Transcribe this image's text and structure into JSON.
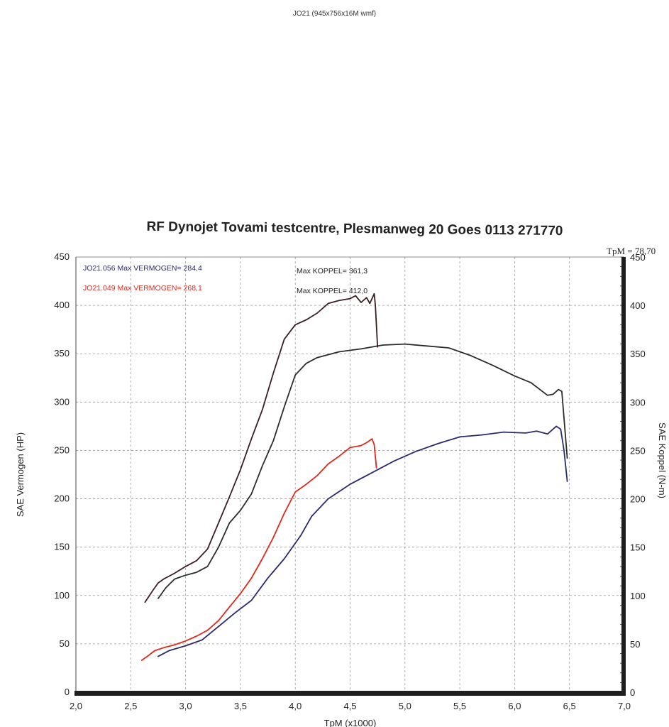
{
  "header_note": "JO21 (945x756x16M wmf)",
  "tpm_note": "TpM = 78,70",
  "colors": {
    "run_056": "#2b2a6e",
    "run_049": "#e0281c",
    "koppel_dark": "#3a1f22",
    "koppel_grey": "#2c2c2c",
    "grid": "#9a9a9a"
  },
  "chart_data": {
    "type": "line",
    "title": "RF Dynojet Tovami testcentre, Plesmanweg 20 Goes 0113 271770",
    "xlabel": "TpM (x1000)",
    "ylabel_left": "SAE Vermogen (HP)",
    "ylabel_right": "SAE Koppel (N-m)",
    "xlim": [
      2.0,
      7.0
    ],
    "ylim_left": [
      0,
      450
    ],
    "ylim_right": [
      0,
      450
    ],
    "x_ticks": [
      "2,0",
      "2,5",
      "3,0",
      "3,5",
      "4,0",
      "4,5",
      "5,0",
      "5,5",
      "6,0",
      "6,5",
      "7,0"
    ],
    "y_ticks_left": [
      "0",
      "50",
      "100",
      "150",
      "200",
      "250",
      "300",
      "350",
      "400",
      "450"
    ],
    "y_ticks_right": [
      "0",
      "50",
      "100",
      "150",
      "200",
      "250",
      "300",
      "350",
      "400",
      "450"
    ],
    "grid": true,
    "legend": [
      {
        "text": "JO21.056  Max VERMOGEN= 284,4",
        "color": "#2b2a6e"
      },
      {
        "text": "JO21.049  Max VERMOGEN= 268,1",
        "color": "#e0281c"
      },
      {
        "text": "Max KOPPEL= 361,3",
        "color": "#222222"
      },
      {
        "text": "Max KOPPEL= 412,0",
        "color": "#222222"
      }
    ],
    "series": [
      {
        "key": "vermogen_056",
        "axis": "left",
        "color": "#2b2a6e",
        "points": [
          [
            2.75,
            37
          ],
          [
            2.85,
            43
          ],
          [
            3.0,
            48
          ],
          [
            3.15,
            54
          ],
          [
            3.3,
            68
          ],
          [
            3.45,
            82
          ],
          [
            3.6,
            95
          ],
          [
            3.75,
            118
          ],
          [
            3.9,
            138
          ],
          [
            4.05,
            162
          ],
          [
            4.15,
            182
          ],
          [
            4.3,
            200
          ],
          [
            4.5,
            215
          ],
          [
            4.7,
            227
          ],
          [
            4.9,
            239
          ],
          [
            5.1,
            249
          ],
          [
            5.3,
            257
          ],
          [
            5.5,
            264
          ],
          [
            5.7,
            266
          ],
          [
            5.9,
            269
          ],
          [
            6.1,
            268
          ],
          [
            6.2,
            270
          ],
          [
            6.3,
            267
          ],
          [
            6.38,
            275
          ],
          [
            6.42,
            272
          ],
          [
            6.45,
            250
          ],
          [
            6.48,
            218
          ]
        ]
      },
      {
        "key": "vermogen_049",
        "axis": "left",
        "color": "#e0281c",
        "points": [
          [
            2.6,
            33
          ],
          [
            2.65,
            37
          ],
          [
            2.72,
            43
          ],
          [
            2.8,
            46
          ],
          [
            2.9,
            49
          ],
          [
            3.0,
            53
          ],
          [
            3.1,
            58
          ],
          [
            3.2,
            64
          ],
          [
            3.3,
            74
          ],
          [
            3.4,
            88
          ],
          [
            3.5,
            102
          ],
          [
            3.6,
            118
          ],
          [
            3.7,
            138
          ],
          [
            3.8,
            160
          ],
          [
            3.9,
            185
          ],
          [
            4.0,
            207
          ],
          [
            4.1,
            215
          ],
          [
            4.2,
            224
          ],
          [
            4.3,
            236
          ],
          [
            4.4,
            244
          ],
          [
            4.5,
            253
          ],
          [
            4.6,
            255
          ],
          [
            4.65,
            258
          ],
          [
            4.7,
            262
          ],
          [
            4.72,
            256
          ],
          [
            4.74,
            232
          ]
        ]
      },
      {
        "key": "koppel_056",
        "axis": "right",
        "color": "#2c2c2c",
        "points": [
          [
            2.75,
            97
          ],
          [
            2.82,
            108
          ],
          [
            2.9,
            117
          ],
          [
            3.0,
            121
          ],
          [
            3.1,
            124
          ],
          [
            3.2,
            130
          ],
          [
            3.3,
            150
          ],
          [
            3.4,
            175
          ],
          [
            3.5,
            188
          ],
          [
            3.6,
            205
          ],
          [
            3.7,
            234
          ],
          [
            3.8,
            260
          ],
          [
            3.9,
            295
          ],
          [
            4.0,
            328
          ],
          [
            4.1,
            340
          ],
          [
            4.2,
            346
          ],
          [
            4.4,
            352
          ],
          [
            4.6,
            355
          ],
          [
            4.8,
            359
          ],
          [
            5.0,
            360
          ],
          [
            5.2,
            358
          ],
          [
            5.4,
            356
          ],
          [
            5.6,
            348
          ],
          [
            5.8,
            338
          ],
          [
            6.0,
            327
          ],
          [
            6.15,
            320
          ],
          [
            6.3,
            307
          ],
          [
            6.35,
            308
          ],
          [
            6.4,
            313
          ],
          [
            6.43,
            311
          ],
          [
            6.46,
            270
          ],
          [
            6.48,
            242
          ]
        ]
      },
      {
        "key": "koppel_049",
        "axis": "right",
        "color": "#3a1f22",
        "points": [
          [
            2.63,
            93
          ],
          [
            2.7,
            105
          ],
          [
            2.75,
            113
          ],
          [
            2.8,
            117
          ],
          [
            2.85,
            120
          ],
          [
            2.9,
            123
          ],
          [
            3.0,
            130
          ],
          [
            3.1,
            136
          ],
          [
            3.2,
            148
          ],
          [
            3.3,
            175
          ],
          [
            3.4,
            202
          ],
          [
            3.5,
            230
          ],
          [
            3.6,
            262
          ],
          [
            3.7,
            292
          ],
          [
            3.8,
            330
          ],
          [
            3.9,
            365
          ],
          [
            4.0,
            380
          ],
          [
            4.1,
            385
          ],
          [
            4.2,
            392
          ],
          [
            4.3,
            402
          ],
          [
            4.4,
            405
          ],
          [
            4.5,
            407
          ],
          [
            4.55,
            410
          ],
          [
            4.6,
            403
          ],
          [
            4.65,
            408
          ],
          [
            4.68,
            402
          ],
          [
            4.72,
            412
          ],
          [
            4.73,
            400
          ],
          [
            4.75,
            357
          ]
        ]
      }
    ]
  }
}
